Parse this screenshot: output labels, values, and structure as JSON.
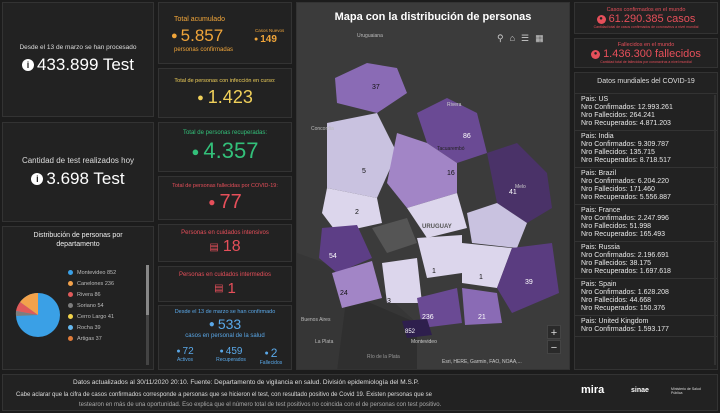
{
  "left": {
    "tests_caption": "Desde el 13 de marzo se han procesado",
    "tests_total": "433.899 Test",
    "tests_today_caption": "Cantidad de test realizados hoy",
    "tests_today": "3.698 Test",
    "dist_title": "Distribución de personas por departamento",
    "dist_items": [
      {
        "label": "Montevideo",
        "value": "852",
        "color": "#3aa0e6"
      },
      {
        "label": "Canelones",
        "value": "236",
        "color": "#f3a24b"
      },
      {
        "label": "Rivera",
        "value": "86",
        "color": "#e05a5a"
      },
      {
        "label": "Soriano",
        "value": "54",
        "color": "#7d7d7d"
      },
      {
        "label": "Cerro Largo",
        "value": "41",
        "color": "#f2d34b"
      },
      {
        "label": "Rocha",
        "value": "39",
        "color": "#66b8ee"
      },
      {
        "label": "Artigas",
        "value": "37",
        "color": "#e07c3a"
      }
    ]
  },
  "mid": {
    "total_label": "Total acumulado",
    "total_value": "5.857",
    "total_sub": "personas confirmadas",
    "nuevos_label": "Casos Nuevos",
    "nuevos_value": "149",
    "curso_label": "Total de personas con infección en curso:",
    "curso_value": "1.423",
    "recup_label": "Total de personas recuperadas:",
    "recup_value": "4.357",
    "fallec_label": "Total de personas fallecidas por COVID-19:",
    "fallec_value": "77",
    "ci_label": "Personas en cuidados intensivos",
    "ci_value": "18",
    "cim_label": "Personas en cuidados intermedios",
    "cim_value": "1",
    "salud_label": "Desde el 13 de marzo se han confirmado",
    "salud_value": "533",
    "salud_sub": "casos en personal de la salud",
    "activos_value": "72",
    "activos_label": "Activos",
    "recuperados_value": "459",
    "recuperados_label": "Recuperados",
    "fallecidos_value": "2",
    "fallecidos_label": "Fallecidos"
  },
  "map": {
    "title": "Mapa con la distribución de personas",
    "labels": {
      "uruguaiana": "Uruguaiana",
      "rivera": "Rivera",
      "concordia": "Concordia",
      "tacuarembo": "Tacuarembó",
      "uruguay": "URUGUAY",
      "melo": "Melo",
      "la_plata": "La Plata",
      "rio_plata": "Río de la Plata",
      "montevideo": "Montevideo",
      "buenos_aires": "Buenos Aires"
    },
    "counts": [
      "37",
      "86",
      "5",
      "16",
      "41",
      "2",
      "54",
      "1",
      "1",
      "39",
      "24",
      "3",
      "236",
      "21",
      "852"
    ],
    "attribution": "Esri, HERE, Garmin, FAO, NOAA,...",
    "zoom_in": "+",
    "zoom_out": "−"
  },
  "world": {
    "conf_label": "Casos confirmados en el mundo",
    "conf_value": "61.290.385 casos",
    "conf_sub": "Cantidad total de casos confirmados de coronavirus a nivel mundial",
    "fall_label": "Fallecidos en el mundo",
    "fall_value": "1.436.300 fallecidos",
    "fall_sub": "Cantidad total de fallecidos por coronavirus a nivel mundial",
    "list_title": "Datos mundiales del COVID-19",
    "countries": [
      {
        "pais": "Pais: US",
        "conf": "Nro Confirmados: 12.993.261",
        "fall": "Nro Fallecidos: 264.241",
        "rec": "Nro Recuperados: 4.871.203"
      },
      {
        "pais": "Pais: India",
        "conf": "Nro Confirmados: 9.309.787",
        "fall": "Nro Fallecidos: 135.715",
        "rec": "Nro Recuperados: 8.718.517"
      },
      {
        "pais": "Pais: Brazil",
        "conf": "Nro Confirmados: 6.204.220",
        "fall": "Nro Fallecidos: 171.460",
        "rec": "Nro Recuperados: 5.556.887"
      },
      {
        "pais": "Pais: France",
        "conf": "Nro Confirmados: 2.247.996",
        "fall": "Nro Fallecidos: 51.998",
        "rec": "Nro Recuperados: 165.493"
      },
      {
        "pais": "Pais: Russia",
        "conf": "Nro Confirmados: 2.196.691",
        "fall": "Nro Fallecidos: 38.175",
        "rec": "Nro Recuperados: 1.697.618"
      },
      {
        "pais": "Pais: Spain",
        "conf": "Nro Confirmados: 1.628.208",
        "fall": "Nro Fallecidos: 44.668",
        "rec": "Nro Recuperados: 150.376"
      },
      {
        "pais": "Pais: United Kingdom",
        "conf": "Nro Confirmados: 1.593.177",
        "fall": "",
        "rec": ""
      }
    ]
  },
  "footer": {
    "updated": "Datos actualizados al 30/11/2020 20:10. Fuente: Departamento de vigilancia en salud. División epidemiología del M.S.P.",
    "note1": "Cabe aclarar que la cifra de casos confirmados corresponde a personas que se hicieron el test, con resultado positivo de Covid 19. Existen personas que se",
    "note2": "testearon en más de una oportunidad. Eso explica que el número total de test positivos no coincida con el de personas con test positivo.",
    "logo_mira": "mira",
    "logo_sinae": "sinae",
    "logo_msp": "Ministerio de Salud Pública"
  },
  "colors": {
    "accent_orange": "#f0a53a",
    "accent_green": "#33c07a",
    "accent_red": "#e64f5a",
    "accent_blue": "#5aa8e8",
    "accent_yellow": "#f0d05a"
  }
}
